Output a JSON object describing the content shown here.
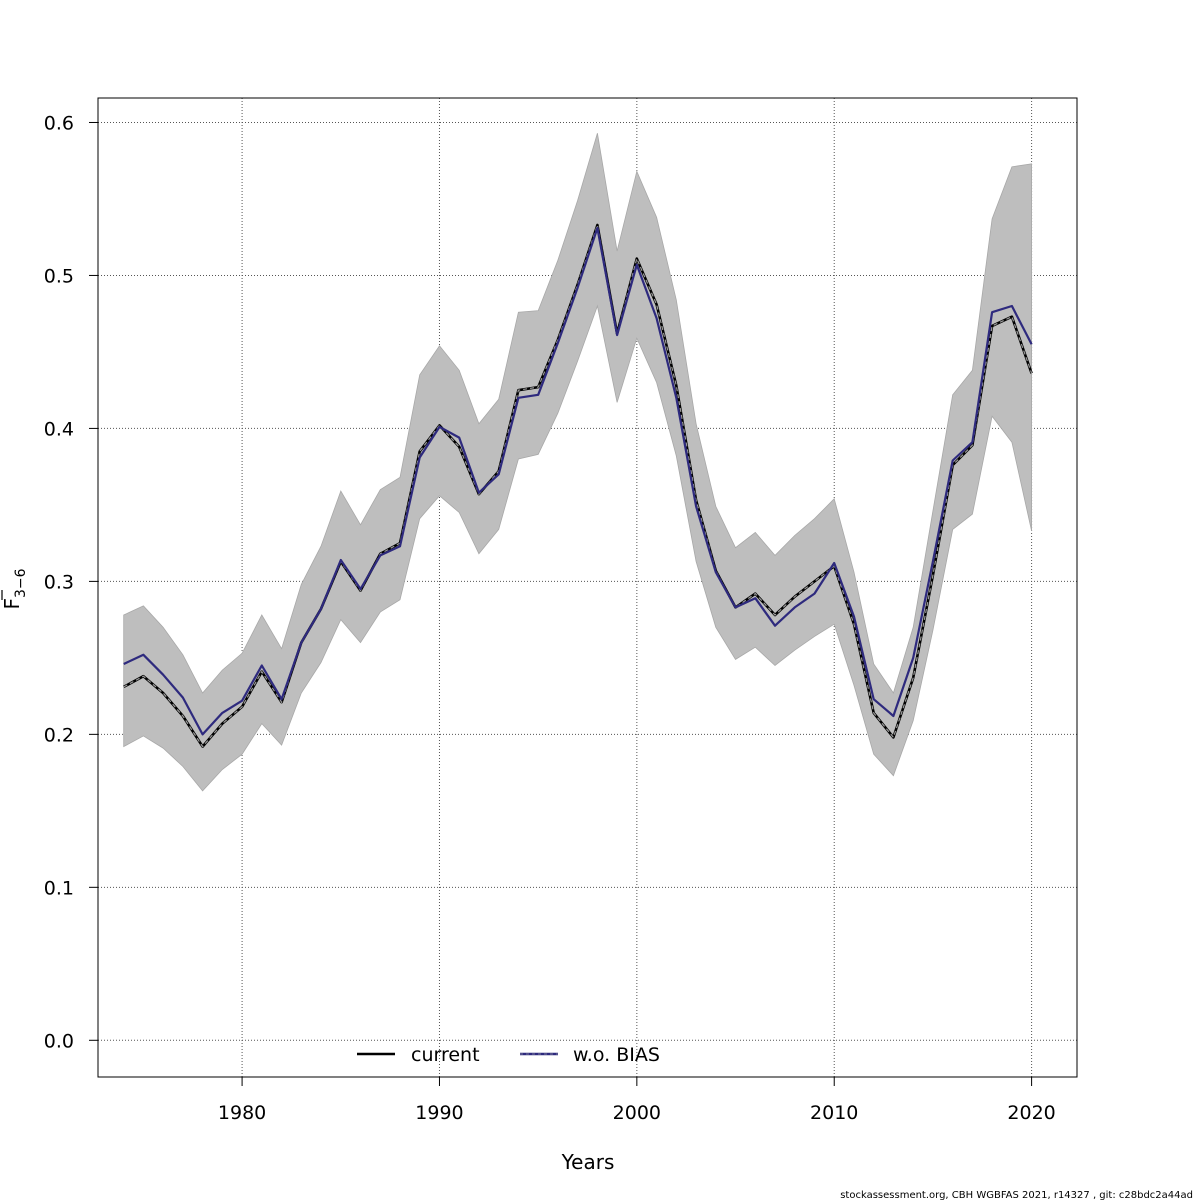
{
  "chart_data": {
    "type": "line",
    "xlabel": "Years",
    "ylabel_main": "F",
    "ylabel_sub": "3−6",
    "xlim": [
      1972.7,
      2022.3
    ],
    "ylim": [
      -0.024,
      0.616
    ],
    "x_ticks": [
      1980,
      1990,
      2000,
      2010,
      2020
    ],
    "y_ticks": [
      0.0,
      0.1,
      0.2,
      0.3,
      0.4,
      0.5,
      0.6
    ],
    "y_tick_labels": [
      "0.0",
      "0.1",
      "0.2",
      "0.3",
      "0.4",
      "0.5",
      "0.6"
    ],
    "grid": true,
    "legend_position": "bottom",
    "x": [
      1974,
      1975,
      1976,
      1977,
      1978,
      1979,
      1980,
      1981,
      1982,
      1983,
      1984,
      1985,
      1986,
      1987,
      1988,
      1989,
      1990,
      1991,
      1992,
      1993,
      1994,
      1995,
      1996,
      1997,
      1998,
      1999,
      2000,
      2001,
      2002,
      2003,
      2004,
      2005,
      2006,
      2007,
      2008,
      2009,
      2010,
      2011,
      2012,
      2013,
      2014,
      2015,
      2016,
      2017,
      2018,
      2019,
      2020
    ],
    "series": [
      {
        "name": "current",
        "color": "#000000",
        "values": [
          0.231,
          0.238,
          0.227,
          0.212,
          0.192,
          0.207,
          0.218,
          0.241,
          0.221,
          0.26,
          0.282,
          0.313,
          0.294,
          0.318,
          0.325,
          0.385,
          0.402,
          0.388,
          0.357,
          0.372,
          0.425,
          0.427,
          0.458,
          0.494,
          0.533,
          0.462,
          0.511,
          0.481,
          0.428,
          0.353,
          0.307,
          0.283,
          0.292,
          0.278,
          0.29,
          0.3,
          0.31,
          0.272,
          0.214,
          0.198,
          0.237,
          0.304,
          0.376,
          0.389,
          0.467,
          0.473,
          0.436
        ]
      },
      {
        "name": "w.o. BIAS",
        "color": "#2e2a7e",
        "values": [
          0.246,
          0.252,
          0.239,
          0.224,
          0.2,
          0.214,
          0.222,
          0.245,
          0.223,
          0.26,
          0.282,
          0.314,
          0.295,
          0.317,
          0.323,
          0.381,
          0.401,
          0.394,
          0.358,
          0.37,
          0.42,
          0.422,
          0.456,
          0.492,
          0.531,
          0.461,
          0.507,
          0.472,
          0.42,
          0.349,
          0.306,
          0.283,
          0.289,
          0.271,
          0.283,
          0.292,
          0.312,
          0.277,
          0.223,
          0.212,
          0.25,
          0.313,
          0.379,
          0.391,
          0.476,
          0.48,
          0.455
        ]
      }
    ],
    "band": {
      "color": "#bebebe",
      "lower": [
        0.192,
        0.199,
        0.191,
        0.179,
        0.163,
        0.177,
        0.187,
        0.207,
        0.193,
        0.227,
        0.247,
        0.275,
        0.26,
        0.28,
        0.288,
        0.341,
        0.356,
        0.345,
        0.318,
        0.334,
        0.38,
        0.383,
        0.41,
        0.444,
        0.48,
        0.417,
        0.459,
        0.43,
        0.382,
        0.313,
        0.27,
        0.249,
        0.257,
        0.245,
        0.255,
        0.264,
        0.272,
        0.232,
        0.187,
        0.173,
        0.209,
        0.268,
        0.334,
        0.344,
        0.408,
        0.391,
        0.333
      ],
      "upper": [
        0.278,
        0.284,
        0.27,
        0.252,
        0.227,
        0.242,
        0.253,
        0.278,
        0.256,
        0.298,
        0.323,
        0.359,
        0.337,
        0.36,
        0.368,
        0.435,
        0.454,
        0.438,
        0.403,
        0.419,
        0.476,
        0.477,
        0.51,
        0.549,
        0.593,
        0.516,
        0.568,
        0.538,
        0.484,
        0.403,
        0.349,
        0.322,
        0.332,
        0.317,
        0.33,
        0.341,
        0.354,
        0.306,
        0.246,
        0.227,
        0.27,
        0.346,
        0.422,
        0.438,
        0.537,
        0.571,
        0.573
      ]
    }
  },
  "footer": "stockassessment.org, CBH  WGBFAS  2021, r14327 , git: c28bdc2a44ad"
}
